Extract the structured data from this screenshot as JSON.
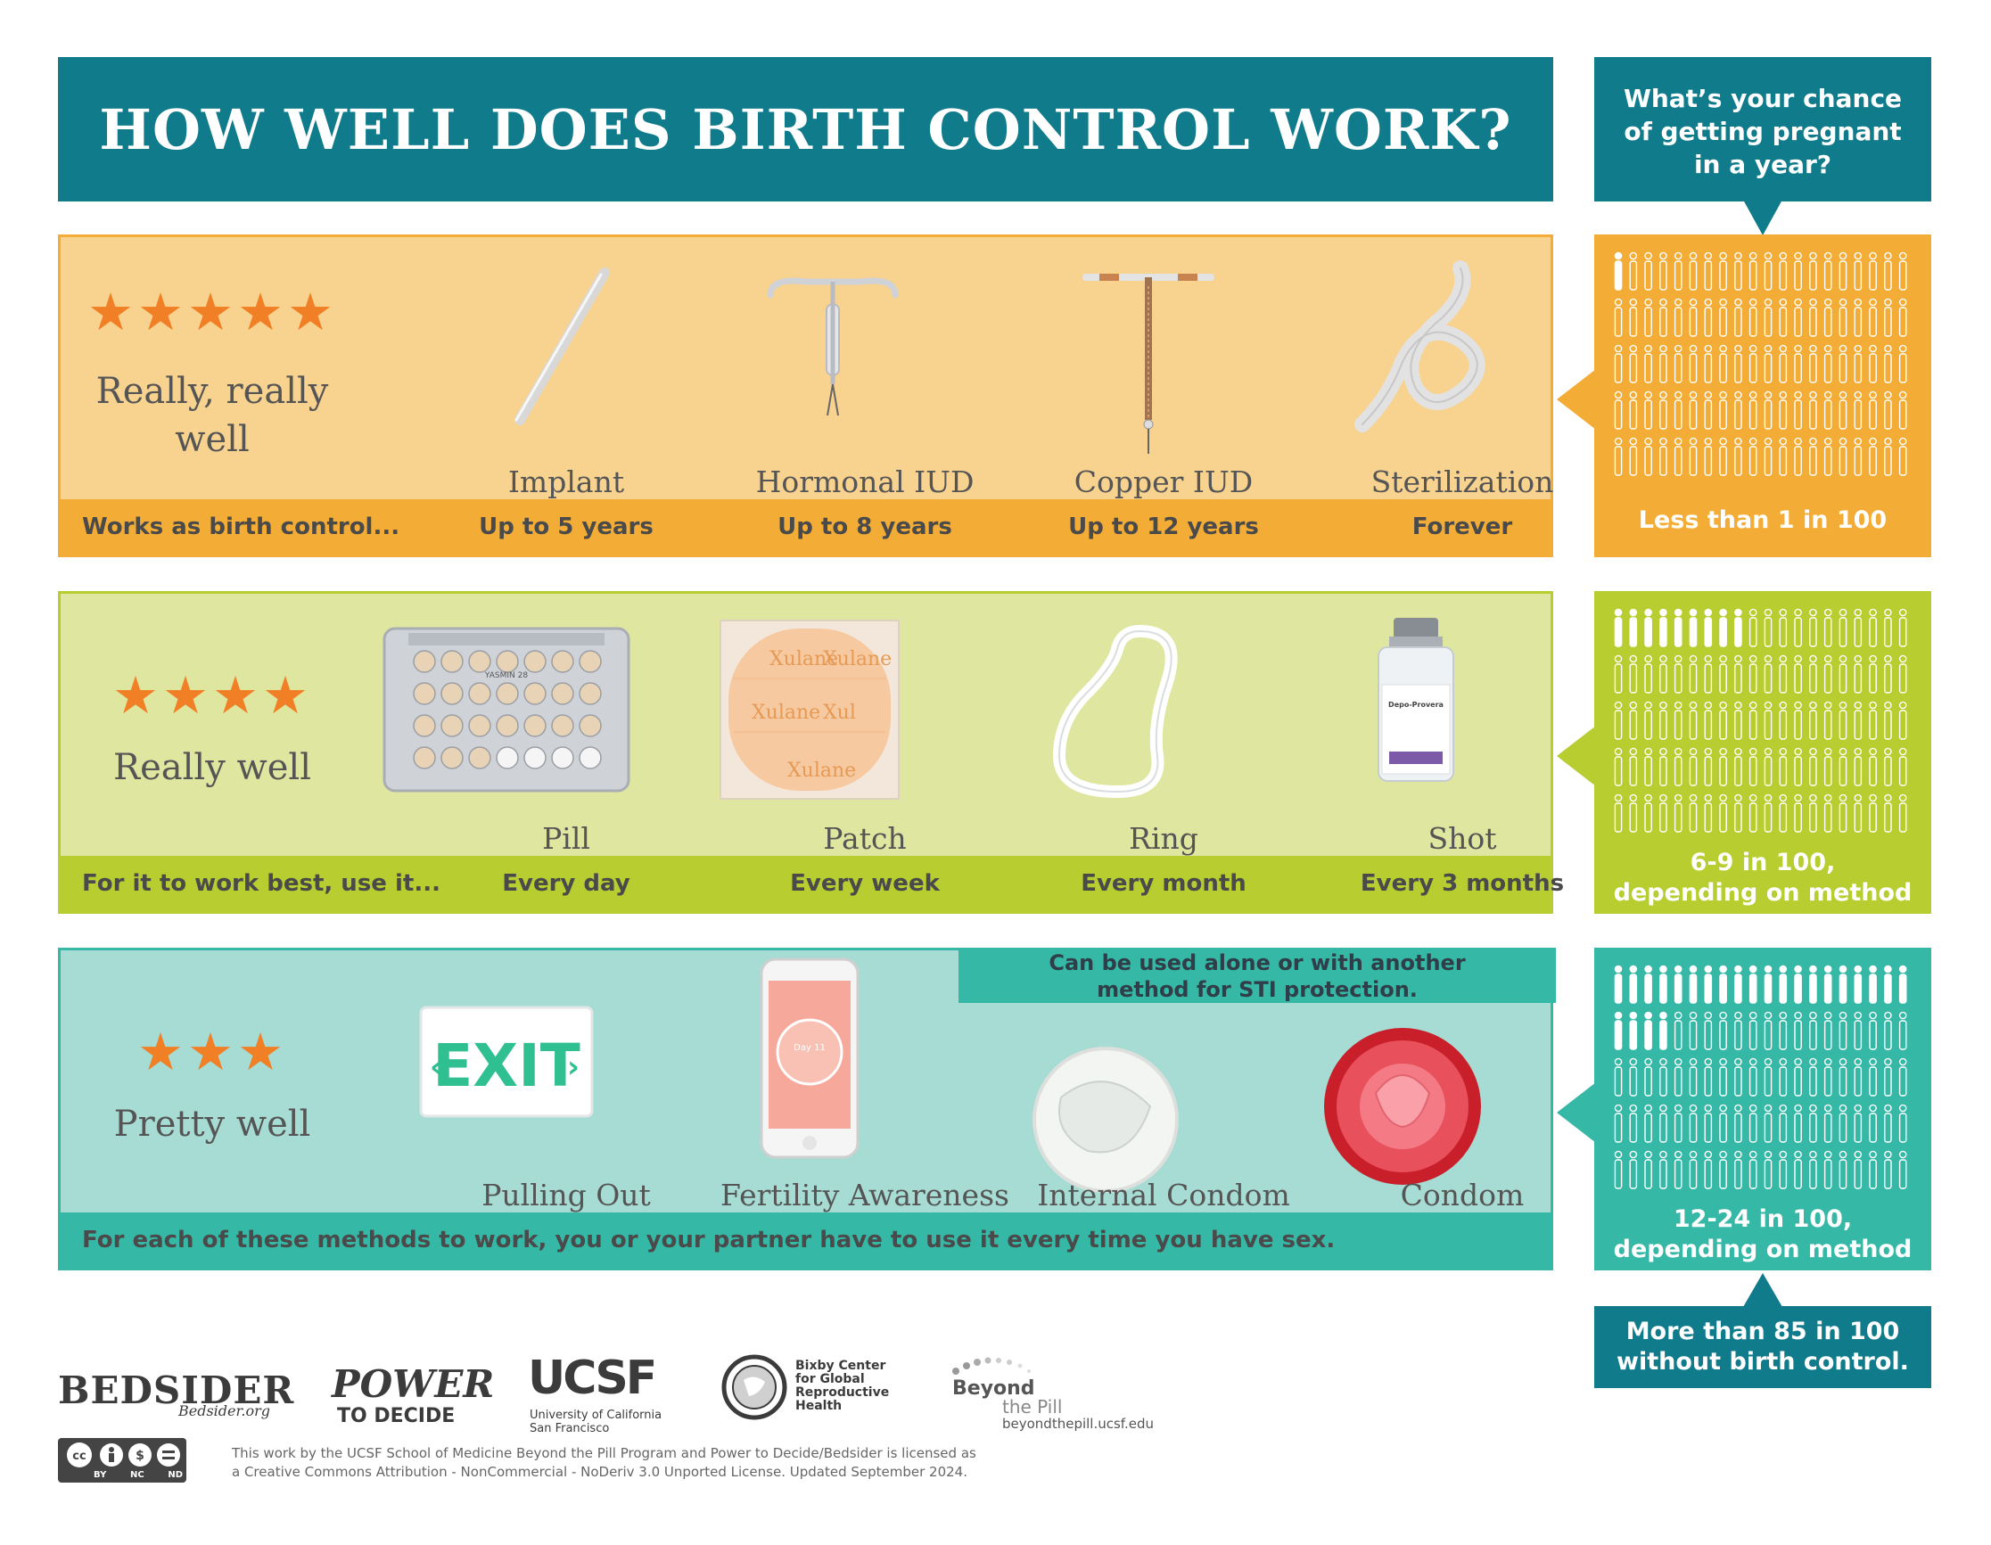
{
  "title": "HOW WELL DOES BIRTH CONTROL WORK?",
  "chance_question": [
    "What’s your chance",
    "of getting pregnant",
    "in a year?"
  ],
  "tiers": [
    {
      "stars": "★★★★★",
      "star_count": 5,
      "rating": [
        "Really, really",
        "well"
      ],
      "strip_label": "Works as birth control...",
      "methods": [
        {
          "name": "Implant",
          "detail": "Up to 5 years"
        },
        {
          "name": "Hormonal IUD",
          "detail": "Up to 8 years"
        },
        {
          "name": "Copper IUD",
          "detail": "Up to 12 years"
        },
        {
          "name": "Sterilization",
          "detail": "Forever"
        }
      ],
      "stat": "Less than 1 in 100",
      "stat_lines": [
        "Less than 1 in 100"
      ],
      "color": "#f3ad36",
      "highlighted_figures": 1
    },
    {
      "stars": "★★★★",
      "star_count": 4,
      "rating": [
        "Really well"
      ],
      "strip_label": "For it to work best, use it...",
      "methods": [
        {
          "name": "Pill",
          "detail": "Every day"
        },
        {
          "name": "Patch",
          "detail": "Every week"
        },
        {
          "name": "Ring",
          "detail": "Every month"
        },
        {
          "name": "Shot",
          "detail": "Every 3 months"
        }
      ],
      "stat_lines": [
        "6-9 in 100,",
        "depending on method"
      ],
      "color": "#b8cd2f",
      "highlighted_figures": 9
    },
    {
      "stars": "★★★",
      "star_count": 3,
      "rating": [
        "Pretty well"
      ],
      "strip_label": "For each of these methods to work, you or your partner have to use it every time you have sex.",
      "sti_note": [
        "Can be used alone or with another",
        "method for STI protection."
      ],
      "methods": [
        {
          "name": "Pulling Out"
        },
        {
          "name": "Fertility Awareness"
        },
        {
          "name": "Internal Condom"
        },
        {
          "name": "Condom"
        }
      ],
      "stat_lines": [
        "12-24 in 100,",
        "depending on method"
      ],
      "color": "#36b8a7",
      "highlighted_figures": 24
    }
  ],
  "no_method": [
    "More than 85 in 100",
    "without birth control."
  ],
  "product_text": {
    "pill_pack": "YASMIN 28",
    "patch": "Xulane",
    "shot": "Depo-Provera",
    "exit_sign": "EXIT",
    "app": "Day 11"
  },
  "footer": {
    "bedsider": "BEDSIDER",
    "bedsider_url": "Bedsider.org",
    "power": "POWER",
    "power_sub": "TO DECIDE",
    "ucsf": "UCSF",
    "ucsf_sub": [
      "University of California",
      "San Francisco"
    ],
    "bixby": [
      "Bixby Center",
      "for Global",
      "Reproductive",
      "Health"
    ],
    "btp": "Beyond",
    "btp2": "the Pill",
    "btp_url": "beyondthepill.ucsf.edu",
    "cc": [
      "BY",
      "NC",
      "ND"
    ],
    "license": [
      "This work by the UCSF School of Medicine Beyond the Pill Program and Power to Decide/Bedsider is licensed as",
      "a Creative Commons Attribution - NonCommercial - NoDeriv 3.0 Unported License. Updated September 2024."
    ]
  },
  "colors": {
    "teal_dark": "#0f7b8b",
    "orange": "#f3ad36",
    "lime": "#b8cd2f",
    "teal": "#36b8a7",
    "star": "#f07f25"
  }
}
